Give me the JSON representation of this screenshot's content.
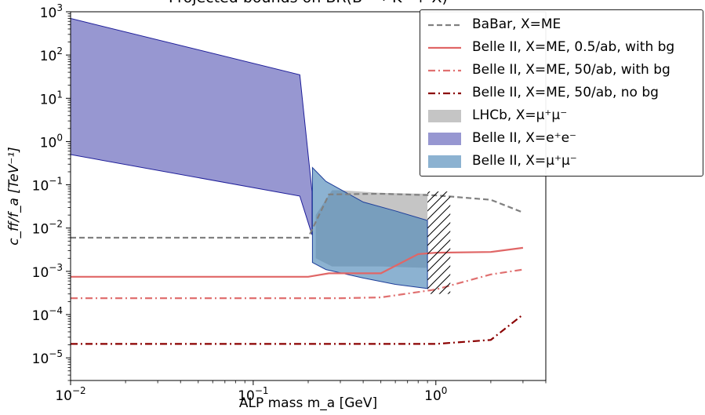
{
  "chart_data": {
    "type": "line",
    "title": "Projected bounds on BR(B⁺ → K⁺ + X)",
    "xlabel": "ALP mass m_a [GeV]",
    "ylabel": "c_ff/f_a [TeV⁻¹]",
    "xscale": "log",
    "yscale": "log",
    "xlim": [
      0.01,
      4.0
    ],
    "ylim": [
      3e-06,
      1000
    ],
    "grid": false,
    "legend_position": "top-right",
    "x_ticks": [
      {
        "base": "10",
        "exp": "−2",
        "value": 0.01
      },
      {
        "base": "10",
        "exp": "−1",
        "value": 0.1
      },
      {
        "base": "10",
        "exp": "0",
        "value": 1
      }
    ],
    "y_ticks": [
      {
        "base": "10",
        "exp": "−5",
        "value": 1e-05
      },
      {
        "base": "10",
        "exp": "−4",
        "value": 0.0001
      },
      {
        "base": "10",
        "exp": "−3",
        "value": 0.001
      },
      {
        "base": "10",
        "exp": "−2",
        "value": 0.01
      },
      {
        "base": "10",
        "exp": "−1",
        "value": 0.1
      },
      {
        "base": "10",
        "exp": "0",
        "value": 1
      },
      {
        "base": "10",
        "exp": "1",
        "value": 10
      },
      {
        "base": "10",
        "exp": "2",
        "value": 100
      },
      {
        "base": "10",
        "exp": "3",
        "value": 1000
      }
    ],
    "series": [
      {
        "name": "BaBar, X=ME",
        "kind": "line",
        "style": "dashed",
        "color": "#808080",
        "x": [
          0.01,
          0.2,
          0.26,
          0.5,
          1.0,
          2.0,
          3.0
        ],
        "y": [
          0.006,
          0.006,
          0.06,
          0.062,
          0.057,
          0.045,
          0.023
        ]
      },
      {
        "name": "Belle II, X=ME, 0.5/ab, with bg",
        "kind": "line",
        "style": "solid",
        "color": "#e06666",
        "x": [
          0.01,
          0.2,
          0.26,
          0.5,
          0.8,
          1.0,
          2.0,
          3.0
        ],
        "y": [
          0.00075,
          0.00075,
          0.0009,
          0.0009,
          0.0025,
          0.0027,
          0.0028,
          0.0035
        ]
      },
      {
        "name": "Belle II, X=ME, 50/ab, with bg",
        "kind": "line",
        "style": "dashdot",
        "color": "#e07070",
        "x": [
          0.01,
          0.3,
          0.5,
          1.0,
          2.0,
          3.0
        ],
        "y": [
          0.00024,
          0.00024,
          0.00025,
          0.00038,
          0.00085,
          0.0011
        ]
      },
      {
        "name": "Belle II, X=ME, 50/ab, no bg",
        "kind": "line",
        "style": "dashdot",
        "color": "#8b0000",
        "x": [
          0.01,
          0.5,
          1.0,
          2.0,
          3.0
        ],
        "y": [
          2.1e-05,
          2.1e-05,
          2.1e-05,
          2.6e-05,
          0.0001
        ]
      },
      {
        "name": "LHCb, X=μ⁺μ⁻",
        "kind": "band",
        "color": "#bfbfbf",
        "opacity": 0.9,
        "x": [
          0.22,
          0.27,
          0.3,
          0.5,
          0.9
        ],
        "y_upper": [
          0.02,
          0.075,
          0.075,
          0.065,
          0.062
        ],
        "y_lower": [
          0.002,
          0.0013,
          0.0013,
          0.0013,
          0.0012
        ]
      },
      {
        "name": "Belle II, X=e⁺e⁻",
        "kind": "band",
        "color": "#8c8ccc",
        "opacity": 0.9,
        "edge": "#1f1f9a",
        "x": [
          0.01,
          0.18,
          0.21
        ],
        "y_upper": [
          700,
          35,
          0.07
        ],
        "y_lower": [
          0.5,
          0.055,
          0.007
        ]
      },
      {
        "name": "Belle II, X=μ⁺μ⁻",
        "kind": "band",
        "color": "#4f88b8",
        "opacity": 0.65,
        "edge": "#1f3f9a",
        "x": [
          0.211,
          0.25,
          0.4,
          0.6,
          0.9
        ],
        "y_upper": [
          0.25,
          0.12,
          0.04,
          0.025,
          0.015
        ],
        "y_lower": [
          0.0016,
          0.0011,
          0.0007,
          0.0005,
          0.0004
        ]
      }
    ],
    "annotations": [
      {
        "kind": "hatched_region",
        "x_range": [
          0.9,
          1.2
        ],
        "y_range": [
          0.0003,
          0.07
        ]
      }
    ]
  }
}
